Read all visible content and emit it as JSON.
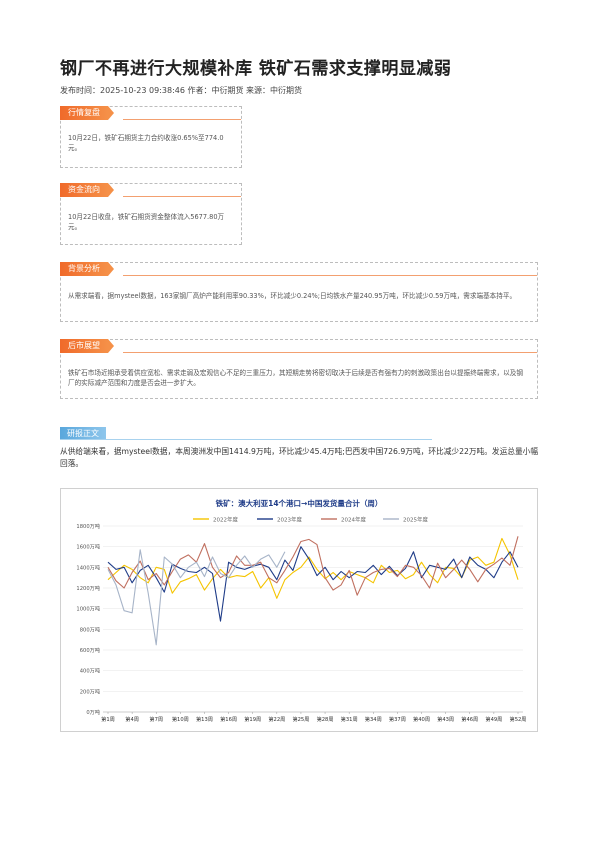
{
  "article": {
    "title": "钢厂不再进行大规模补库 铁矿石需求支撑明显减弱",
    "meta": "发布时间：2025-10-23 09:38:46 作者：中衍期货 来源：中衍期货"
  },
  "sections": {
    "market": {
      "tag": "行情复盘",
      "text": "10月22日，铁矿石期货主力合约收涨0.65%至774.0元。"
    },
    "funds": {
      "tag": "资金流向",
      "text": "10月22日收盘，铁矿石期货资金整体流入5677.80万元。"
    },
    "background": {
      "tag": "背景分析",
      "text": "从需求端看，据mysteel数据，163家钢厂高炉产能利用率90.33%，环比减少0.24%;日均铁水产量240.95万吨，环比减少0.59万吨，需求端基本持平。"
    },
    "outlook": {
      "tag": "后市展望",
      "text": "铁矿石市场近期承受着供应宽松、需求走弱及宏观信心不足的三重压力，其短期走势将密切取决于后续是否有强有力的刺激政策出台以提振终端需求，以及钢厂的实际减产范围和力度是否会进一步扩大。"
    }
  },
  "report": {
    "tag": "研报正文",
    "text": "从供给端来看，据mysteel数据，本周澳洲发中国1414.9万吨，环比减少45.4万吨;巴西发中国726.9万吨，环比减少22万吨。发运总量小幅回落。"
  },
  "chart_data": {
    "type": "line",
    "title": "铁矿：澳大利亚14个港口→中国发货量合计（周）",
    "ylim": [
      0,
      1800
    ],
    "y_ticks": [
      "0万吨",
      "200万吨",
      "400万吨",
      "600万吨",
      "800万吨",
      "1000万吨",
      "1200万吨",
      "1400万吨",
      "1600万吨",
      "1800万吨"
    ],
    "x_tick_labels": [
      "第1周",
      "第4周",
      "第7周",
      "第10周",
      "第13周",
      "第16周",
      "第19周",
      "第22周",
      "第25周",
      "第28周",
      "第31周",
      "第34周",
      "第37周",
      "第40周",
      "第43周",
      "第46周",
      "第49周",
      "第52周"
    ],
    "legend_position": "top-center",
    "series": [
      {
        "name": "2022年度",
        "color": "#f5c400",
        "values": [
          1280,
          1350,
          1420,
          1380,
          1300,
          1250,
          1400,
          1380,
          1150,
          1260,
          1290,
          1330,
          1180,
          1290,
          1380,
          1300,
          1320,
          1310,
          1360,
          1200,
          1300,
          1100,
          1280,
          1350,
          1400,
          1500,
          1380,
          1290,
          1350,
          1280,
          1360,
          1330,
          1300,
          1250,
          1420,
          1350,
          1370,
          1290,
          1330,
          1450,
          1330,
          1250,
          1400,
          1390,
          1300,
          1470,
          1500,
          1420,
          1450,
          1680,
          1520,
          1280
        ]
      },
      {
        "name": "2023年度",
        "color": "#1f3c88",
        "values": [
          1450,
          1380,
          1400,
          1250,
          1370,
          1420,
          1300,
          1160,
          1430,
          1390,
          1360,
          1350,
          1400,
          1340,
          880,
          1450,
          1400,
          1380,
          1410,
          1430,
          1400,
          1280,
          1470,
          1370,
          1600,
          1480,
          1320,
          1400,
          1280,
          1360,
          1300,
          1360,
          1350,
          1420,
          1330,
          1410,
          1320,
          1390,
          1550,
          1300,
          1420,
          1400,
          1380,
          1480,
          1300,
          1500,
          1420,
          1380,
          1300,
          1450,
          1550,
          1400
        ]
      },
      {
        "name": "2024年度",
        "color": "#c07060",
        "values": [
          1400,
          1270,
          1200,
          1350,
          1460,
          1280,
          1340,
          1230,
          1360,
          1480,
          1520,
          1450,
          1630,
          1400,
          1300,
          1350,
          1510,
          1420,
          1420,
          1450,
          1300,
          1250,
          1370,
          1500,
          1650,
          1670,
          1620,
          1300,
          1180,
          1230,
          1370,
          1130,
          1300,
          1350,
          1380,
          1390,
          1310,
          1420,
          1400,
          1320,
          1200,
          1440,
          1300,
          1380,
          1470,
          1380,
          1260,
          1380,
          1430,
          1490,
          1420,
          1700
        ]
      },
      {
        "name": "2025年度",
        "color": "#a7b4c8",
        "values": [
          1380,
          1230,
          980,
          960,
          1570,
          1150,
          650,
          1500,
          1430,
          1300,
          1400,
          1450,
          1310,
          1500,
          1340,
          1300,
          1420,
          1510,
          1400,
          1480,
          1520,
          1400,
          1550
        ]
      }
    ]
  }
}
